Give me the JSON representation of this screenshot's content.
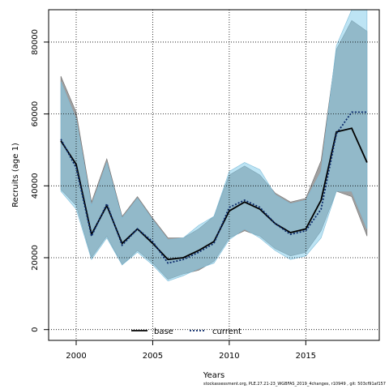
{
  "chart_data": {
    "type": "area",
    "xlabel": "Years",
    "ylabel": "Recruits (age 1)",
    "xlim": [
      1998.2,
      2019.8
    ],
    "ylim": [
      -3000,
      89000
    ],
    "x_ticks": [
      2000,
      2005,
      2010,
      2015
    ],
    "y_ticks": [
      0,
      20000,
      40000,
      60000,
      80000
    ],
    "grid": true,
    "legend_position": "bottom-center",
    "x": [
      1999,
      2000,
      2001,
      2002,
      2003,
      2004,
      2005,
      2006,
      2007,
      2008,
      2009,
      2010,
      2011,
      2012,
      2013,
      2014,
      2015,
      2016,
      2017,
      2018,
      2019
    ],
    "series": [
      {
        "name": "base",
        "color": "#000000",
        "dash": "solid",
        "band_color": "#808080",
        "values": [
          52500,
          46000,
          26500,
          34500,
          24000,
          28000,
          24000,
          19500,
          20000,
          22000,
          24500,
          33000,
          35500,
          33500,
          29500,
          27000,
          28000,
          36000,
          55000,
          56000,
          46500
        ],
        "upper": [
          70500,
          60500,
          35500,
          47500,
          31500,
          37000,
          31000,
          25500,
          25500,
          28000,
          31500,
          43000,
          45500,
          43000,
          38000,
          35500,
          36500,
          47000,
          78000,
          86000,
          83000
        ],
        "lower": [
          39000,
          34500,
          20000,
          26000,
          18000,
          22000,
          18500,
          14000,
          15500,
          16500,
          19000,
          25500,
          27500,
          26000,
          22500,
          20500,
          21500,
          27500,
          38500,
          37000,
          26000
        ]
      },
      {
        "name": "current",
        "color": "#0b2a6b",
        "dash": "dotted",
        "band_color": "#87ceeb",
        "values": [
          53000,
          45000,
          26000,
          35000,
          23500,
          28000,
          24500,
          18500,
          19500,
          21500,
          24000,
          34000,
          36000,
          34000,
          29500,
          26500,
          27500,
          33500,
          54500,
          60500,
          60500
        ],
        "upper": [
          69000,
          58500,
          34500,
          46500,
          31000,
          36500,
          30500,
          25000,
          25500,
          29000,
          31500,
          44000,
          46500,
          44500,
          37500,
          35000,
          36000,
          44000,
          79000,
          89000,
          89000
        ],
        "lower": [
          38500,
          33500,
          19500,
          25500,
          18000,
          21500,
          18000,
          13500,
          15000,
          17000,
          18500,
          25000,
          28000,
          25500,
          22000,
          19500,
          20500,
          25500,
          38500,
          38500,
          28000
        ]
      }
    ]
  },
  "footer": "stockassessment.org, PLE.27.21-23_WGBFAS_2019_4changes, r10949 , git: 503cf91af157"
}
